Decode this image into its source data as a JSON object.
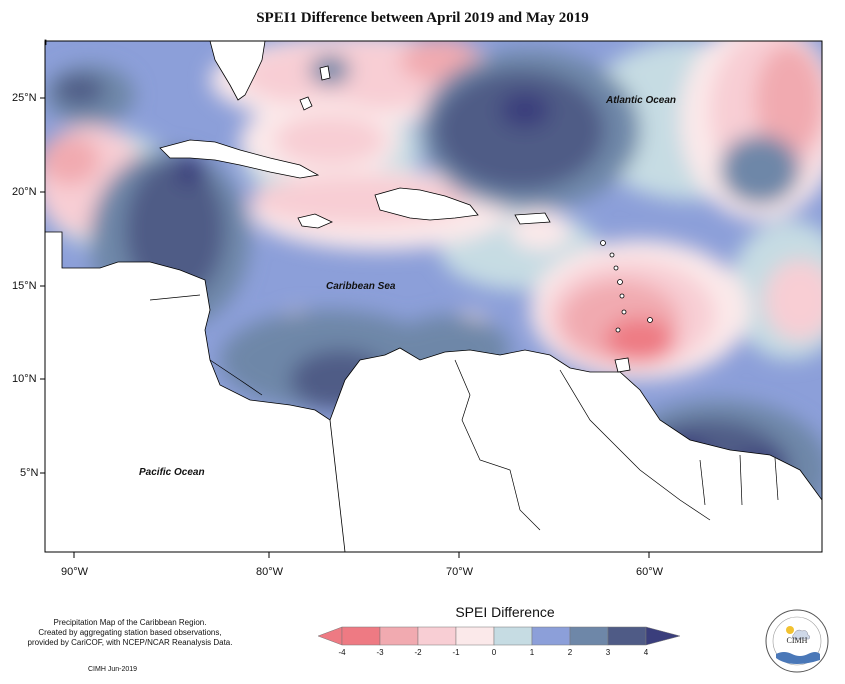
{
  "title": "SPEI1 Difference between April 2019 and May 2019",
  "map": {
    "latitude_labels": [
      "25°N",
      "20°N",
      "15°N",
      "10°N",
      "5°N"
    ],
    "longitude_labels": [
      "90°W",
      "80°W",
      "70°W",
      "60°W"
    ],
    "ocean_labels": {
      "atlantic": "Atlantic Ocean",
      "caribbean": "Caribbean Sea",
      "pacific": "Pacific Ocean"
    },
    "colors": {
      "neg4": "#ee7a83",
      "neg3": "#f1aab0",
      "neg2": "#f8ced4",
      "neg1": "#fbe9ea",
      "zero": "#c6dce3",
      "pos1": "#8c9fd9",
      "pos2": "#6e87a8",
      "pos3": "#4f5b86",
      "pos4": "#3a3e7c",
      "land": "#ffffff",
      "border": "#000000"
    }
  },
  "legend": {
    "title": "SPEI Difference",
    "ticks": [
      "-4",
      "-3",
      "-2",
      "-1",
      "0",
      "1",
      "2",
      "3",
      "4"
    ]
  },
  "credits": {
    "line1": "Precipitation Map of the Caribbean Region.",
    "line2": "Created by aggregating station based observations,",
    "line3": "provided by CariCOF, with NCEP/NCAR Reanalysis Data.",
    "stamp": "CIMH  Jun-2019"
  },
  "logo": {
    "text": "CIMH"
  }
}
